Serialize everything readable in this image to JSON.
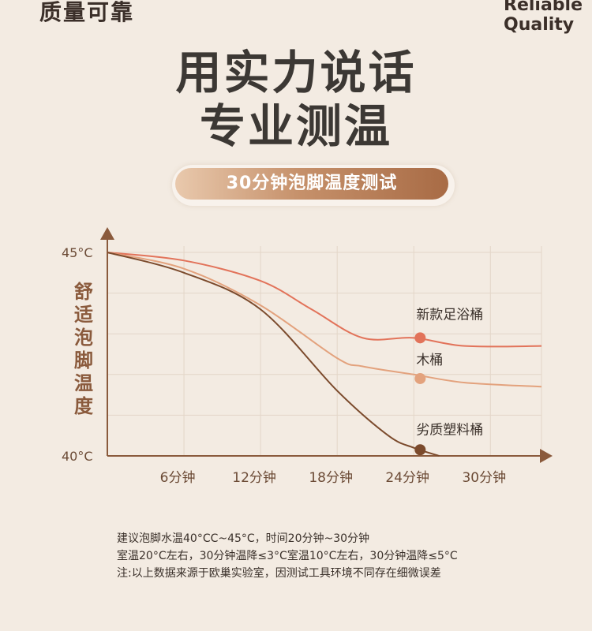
{
  "header": {
    "brand_cn": "质量可靠",
    "brand_en_line1": "Reliable",
    "brand_en_line2": "Quality"
  },
  "headline": {
    "line1": "用实力说话",
    "line2": "专业测温"
  },
  "pill": {
    "label": "30分钟泡脚温度测试"
  },
  "colors": {
    "axis": "#8a5a3c",
    "new_bucket": "#e2735a",
    "wood_bucket": "#e3a27d",
    "plastic_bucket": "#7b4a2c",
    "grid": "#e3d6c8"
  },
  "chart_data": {
    "type": "line",
    "ylabel": "舒适泡脚温度",
    "y_ticks": [
      "45°C",
      "40°C"
    ],
    "ylim": [
      40,
      45
    ],
    "x_ticks": [
      "6分钟",
      "12分钟",
      "18分钟",
      "24分钟",
      "30分钟"
    ],
    "x_tick_values": [
      6,
      12,
      18,
      24,
      30
    ],
    "xlim": [
      0,
      34
    ],
    "grid": true,
    "series": [
      {
        "name": "新款足浴桶",
        "color": "#e2735a",
        "x": [
          0,
          6,
          12,
          16,
          20,
          24,
          28,
          34
        ],
        "y": [
          45,
          44.8,
          44.3,
          43.6,
          42.9,
          42.9,
          42.7,
          42.7
        ],
        "marker": {
          "x": 24.5,
          "y": 42.9
        }
      },
      {
        "name": "木桶",
        "color": "#e3a27d",
        "x": [
          0,
          6,
          12,
          18,
          20,
          24,
          28,
          34
        ],
        "y": [
          45,
          44.6,
          43.7,
          42.4,
          42.2,
          42.0,
          41.8,
          41.7
        ],
        "marker": {
          "x": 24.5,
          "y": 41.9
        }
      },
      {
        "name": "劣质塑料桶",
        "color": "#7b4a2c",
        "x": [
          0,
          6,
          12,
          18,
          22,
          24,
          26
        ],
        "y": [
          45,
          44.5,
          43.6,
          41.6,
          40.5,
          40.2,
          40.0
        ],
        "marker": {
          "x": 24.5,
          "y": 40.15
        }
      }
    ]
  },
  "notes": {
    "line1": "建议泡脚水温40°CC~45°C，时间20分钟~30分钟",
    "line2": "室温20°C左右，30分钟温降≤3°C室温10°C左右，30分钟温降≤5°C",
    "line3": "注:以上数据来源于欧巢实验室，因测试工具环境不同存在细微误差"
  }
}
